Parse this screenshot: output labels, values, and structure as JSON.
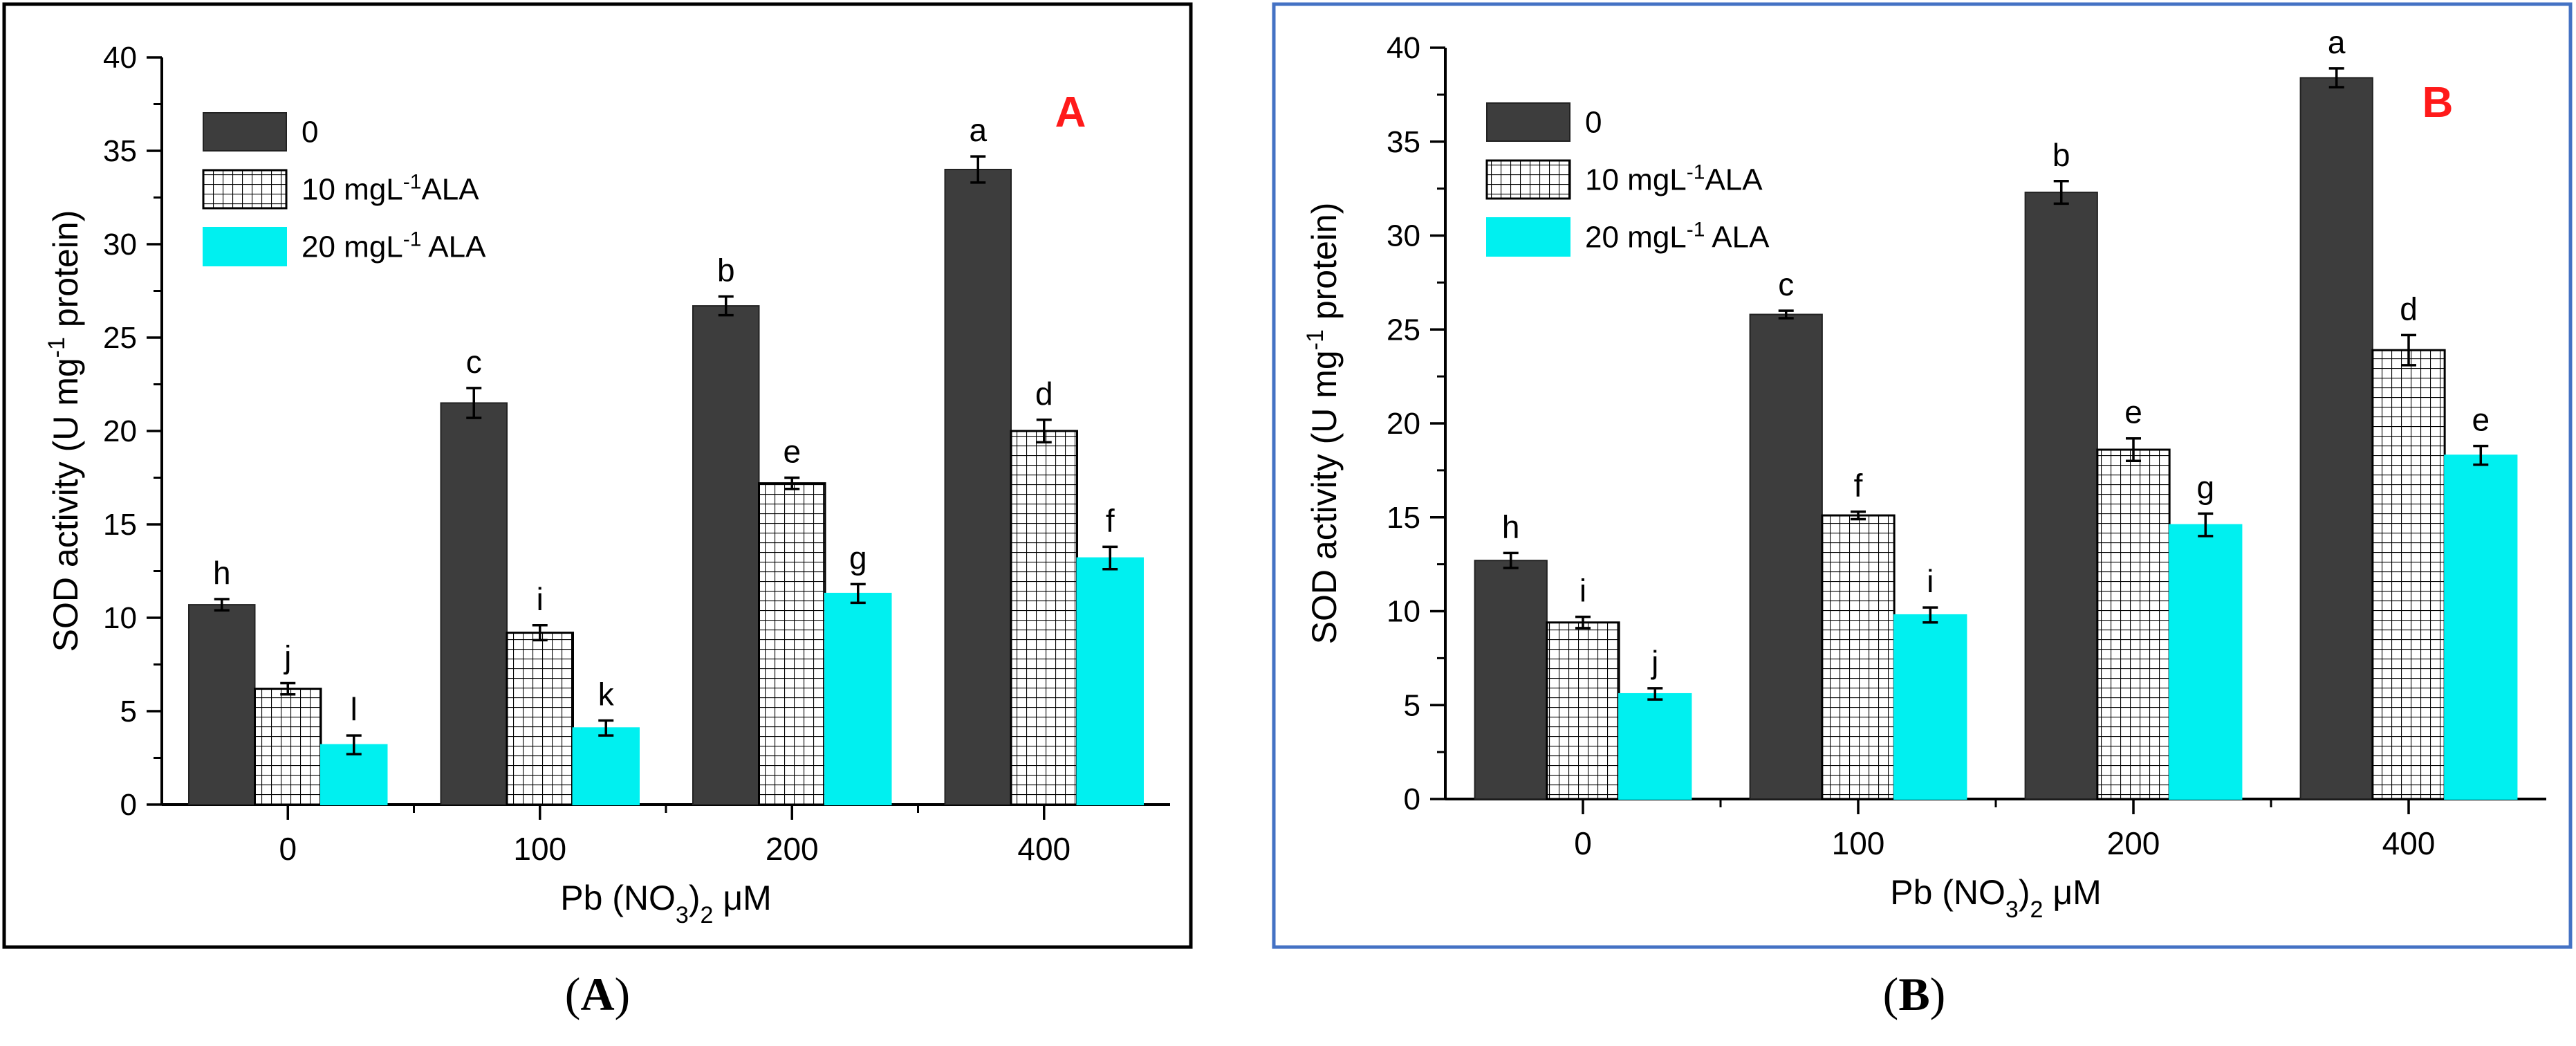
{
  "figure": {
    "captions": [
      "(A)",
      "(B)"
    ]
  },
  "colors": {
    "zero": "#3d3d3d",
    "ala10_fill": "#ffffff",
    "ala20": "#00f0f0",
    "panel_label": "#ff1a1a",
    "frame_a": "#000000",
    "frame_b": "#4472c4"
  },
  "chart_data": [
    {
      "type": "bar",
      "panel_label": "A",
      "ylabel_parts": [
        "SOD activity (U mg",
        "-1",
        " protein)"
      ],
      "xlabel_parts": [
        "Pb (NO",
        "3",
        ")",
        "2",
        " μM"
      ],
      "categories": [
        "0",
        "100",
        "200",
        "400"
      ],
      "ylim": [
        0,
        40
      ],
      "yticks": [
        "0",
        "5",
        "10",
        "15",
        "20",
        "25",
        "30",
        "35",
        "40"
      ],
      "legend": {
        "position": "top-left",
        "entries": [
          {
            "parts": [
              "0"
            ]
          },
          {
            "parts": [
              "10 mgL",
              "-1",
              "ALA"
            ]
          },
          {
            "parts": [
              "20 mgL",
              "-1",
              " ALA"
            ]
          }
        ]
      },
      "series": [
        {
          "name": "0",
          "values": [
            10.7,
            21.5,
            26.7,
            34.0
          ],
          "errors": [
            0.3,
            0.8,
            0.5,
            0.7
          ],
          "letters": [
            "h",
            "c",
            "b",
            "a"
          ]
        },
        {
          "name": "10 mgL-1 ALA",
          "values": [
            6.2,
            9.2,
            17.2,
            20.0
          ],
          "errors": [
            0.3,
            0.4,
            0.3,
            0.6
          ],
          "letters": [
            "j",
            "i",
            "e",
            "d"
          ]
        },
        {
          "name": "20 mgL-1 ALA",
          "values": [
            3.2,
            4.1,
            11.3,
            13.2
          ],
          "errors": [
            0.5,
            0.4,
            0.5,
            0.6
          ],
          "letters": [
            "l",
            "k",
            "g",
            "f"
          ]
        }
      ]
    },
    {
      "type": "bar",
      "panel_label": "B",
      "ylabel_parts": [
        "SOD activity (U mg",
        "-1",
        " protein)"
      ],
      "xlabel_parts": [
        "Pb (NO",
        "3",
        ")",
        "2",
        " μM"
      ],
      "categories": [
        "0",
        "100",
        "200",
        "400"
      ],
      "ylim": [
        0,
        40
      ],
      "yticks": [
        "0",
        "5",
        "10",
        "15",
        "20",
        "25",
        "30",
        "35",
        "40"
      ],
      "legend": {
        "position": "top-left",
        "entries": [
          {
            "parts": [
              "0"
            ]
          },
          {
            "parts": [
              "10 mgL",
              "-1",
              "ALA"
            ]
          },
          {
            "parts": [
              "20 mgL",
              "-1",
              " ALA"
            ]
          }
        ]
      },
      "series": [
        {
          "name": "0",
          "values": [
            12.7,
            25.8,
            32.3,
            38.4
          ],
          "errors": [
            0.4,
            0.2,
            0.6,
            0.5
          ],
          "letters": [
            "h",
            "c",
            "b",
            "a"
          ]
        },
        {
          "name": "10 mgL-1 ALA",
          "values": [
            9.4,
            15.1,
            18.6,
            23.9
          ],
          "errors": [
            0.3,
            0.2,
            0.6,
            0.8
          ],
          "letters": [
            "i",
            "f",
            "e",
            "d"
          ]
        },
        {
          "name": "20 mgL-1 ALA",
          "values": [
            5.6,
            9.8,
            14.6,
            18.3
          ],
          "errors": [
            0.3,
            0.4,
            0.6,
            0.5
          ],
          "letters": [
            "j",
            "i",
            "g",
            "e"
          ]
        }
      ]
    }
  ]
}
